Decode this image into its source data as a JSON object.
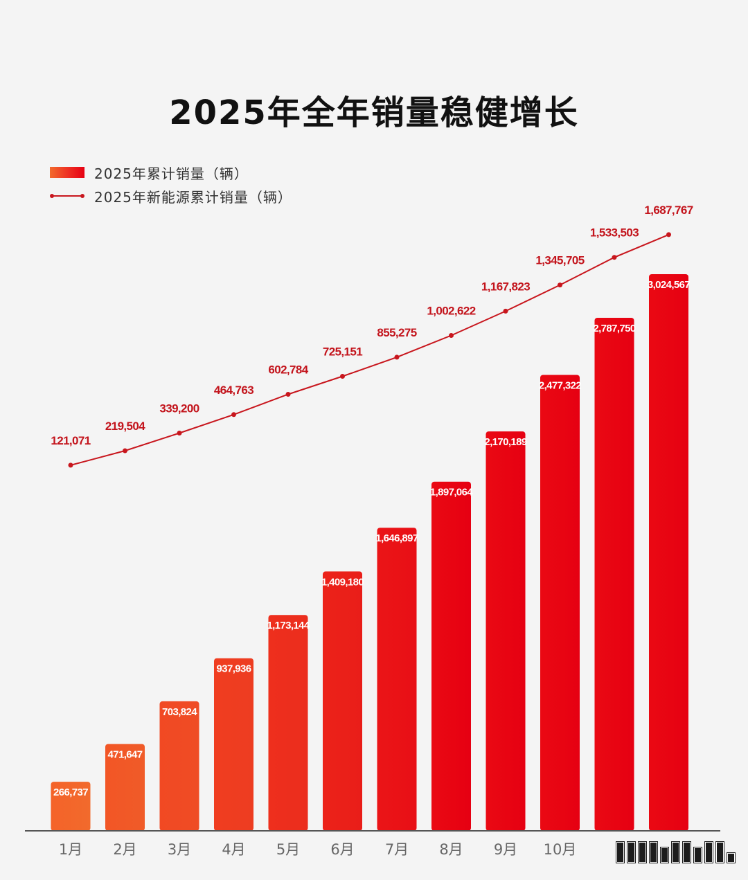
{
  "chart_data": {
    "type": "bar",
    "title": "2025年全年销量稳健增长",
    "categories": [
      "1月",
      "2月",
      "3月",
      "4月",
      "5月",
      "6月",
      "7月",
      "8月",
      "9月",
      "10月",
      "",
      ""
    ],
    "series": [
      {
        "name": "2025年累计销量（辆）",
        "type": "bar",
        "values": [
          266737,
          471647,
          703824,
          937936,
          1173144,
          1409180,
          1646897,
          1897064,
          2170189,
          2477322,
          2787750,
          3024567
        ],
        "labels": [
          "266,737",
          "471,647",
          "703,824",
          "937,936",
          "1,173,144",
          "1,409,180",
          "1,646,897",
          "1,897,064",
          "2,170,189",
          "2,477,322",
          "2,787,750",
          "3,024,567"
        ]
      },
      {
        "name": "2025年新能源累计销量（辆）",
        "type": "line",
        "values": [
          121071,
          219504,
          339200,
          464763,
          602784,
          725151,
          855275,
          1002622,
          1167823,
          1345705,
          1533503,
          1687767
        ],
        "labels": [
          "121,071",
          "219,504",
          "339,200",
          "464,763",
          "602,784",
          "725,151",
          "855,275",
          "1,002,622",
          "1,167,823",
          "1,345,705",
          "1,533,503",
          "1,687,767"
        ]
      }
    ],
    "legend_position": "top-left",
    "grid": false
  },
  "colors": {
    "bar_start": "#f26a2c",
    "bar_end": "#e60012",
    "line": "#c8161d",
    "line_label": "#c3141c",
    "axis": "#555555",
    "title": "#111111",
    "background": "#f4f4f4"
  }
}
